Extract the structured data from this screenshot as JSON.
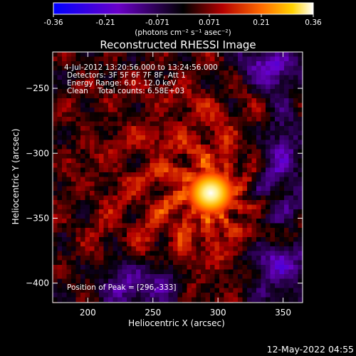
{
  "chart_data": {
    "type": "heatmap",
    "title": "Reconstructed RHESSI Image",
    "colorbar": {
      "min": -0.36,
      "max": 0.36,
      "ticks": [
        "-0.36",
        "-0.21",
        "-0.071",
        "0.071",
        "0.21",
        "0.36"
      ],
      "unit_label": "(photons cm⁻² s⁻¹ asec⁻²)",
      "colormap": [
        "#0000ff",
        "#6a00c8",
        "#000000",
        "#b40000",
        "#ff6a00",
        "#ffd200",
        "#ffffff"
      ]
    },
    "xlabel": "Heliocentric X (arcsec)",
    "ylabel": "Heliocentric Y (arcsec)",
    "xlim": [
      173,
      365
    ],
    "ylim": [
      -415,
      -222
    ],
    "xticks": [
      200,
      250,
      300,
      350
    ],
    "yticks": [
      -250,
      -300,
      -350,
      -400
    ],
    "annotations": [
      "4-Jul-2012 13:20:56.000 to 13:24:56.000",
      "Detectors: 3F 5F 6F 7F 8F, Att 1",
      "Energy Range: 6.0 - 12.0 keV",
      "Clean    Total counts: 6.58E+03"
    ],
    "peak_label": "Position of Peak = [296,-333]",
    "peak": {
      "x": 296,
      "y": -333,
      "value": 0.36
    },
    "grid": false,
    "legend": "none"
  },
  "timestamp": "12-May-2022 04:55"
}
